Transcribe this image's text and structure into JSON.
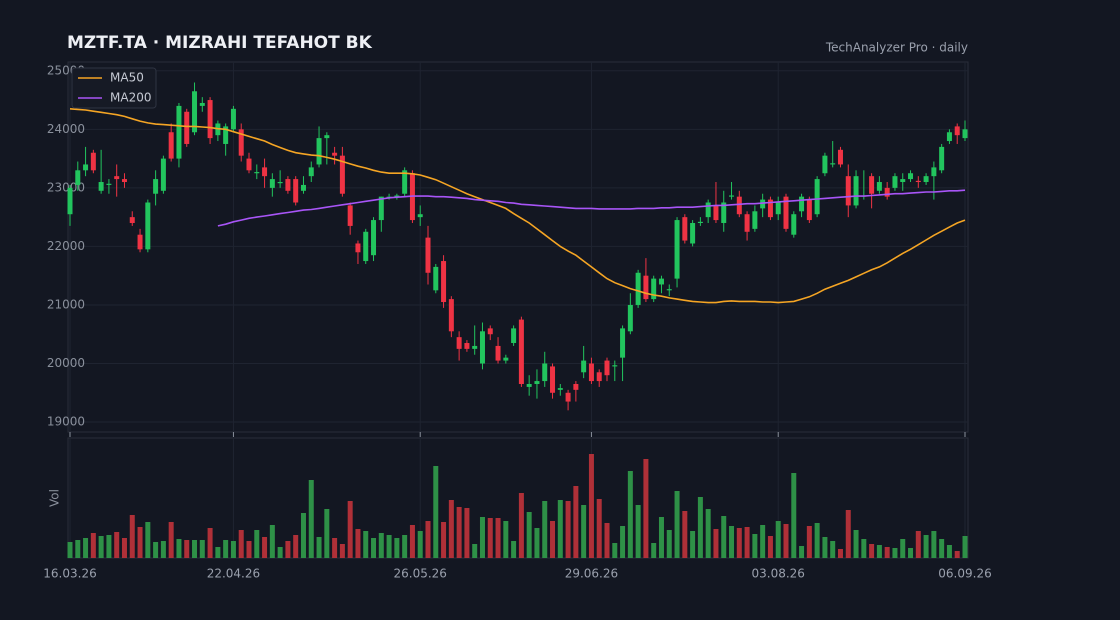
{
  "chart_data": {
    "type": "candlestick",
    "title": "MZTF.TA  ·  MIZRAHI TEFAHOT BK",
    "subtitle": "TechAnalyzer Pro · daily",
    "categories": [
      "16.03.26",
      null,
      null,
      null,
      null,
      null,
      null,
      null,
      null,
      null,
      null,
      null,
      null,
      null,
      null,
      null,
      null,
      null,
      null,
      null,
      null,
      "22.04.26",
      null,
      null,
      null,
      null,
      null,
      null,
      null,
      null,
      null,
      null,
      null,
      null,
      null,
      null,
      null,
      null,
      null,
      null,
      null,
      null,
      null,
      null,
      null,
      "26.05.26",
      null,
      null,
      null,
      null,
      null,
      null,
      null,
      null,
      null,
      null,
      null,
      null,
      null,
      null,
      null,
      null,
      null,
      null,
      null,
      null,
      null,
      "29.06.26",
      null,
      null,
      null,
      null,
      null,
      null,
      null,
      null,
      null,
      null,
      null,
      null,
      null,
      null,
      null,
      null,
      null,
      null,
      null,
      null,
      null,
      null,
      null,
      "03.08.26",
      null,
      null,
      null,
      null,
      null,
      null,
      null,
      null,
      null,
      null,
      null,
      null,
      null,
      null,
      null,
      null,
      null,
      null,
      null,
      null,
      null,
      null,
      null,
      "06.09.26"
    ],
    "open": [
      22550,
      23050,
      23300,
      23600,
      22950,
      23050,
      23200,
      23150,
      22500,
      22200,
      21950,
      22900,
      22950,
      23950,
      23500,
      24300,
      23950,
      24400,
      24500,
      23900,
      23750,
      24000,
      24000,
      23500,
      23250,
      23350,
      23000,
      23080,
      23150,
      23150,
      22950,
      23200,
      23400,
      23850,
      23600,
      23550,
      22700,
      22050,
      21750,
      21850,
      22450,
      22830,
      22850,
      22900,
      23250,
      22500,
      22150,
      21250,
      21750,
      21100,
      20450,
      20350,
      20250,
      20000,
      20600,
      20300,
      20050,
      20350,
      20750,
      19600,
      19650,
      19700,
      19950,
      19550,
      19500,
      19650,
      19850,
      20000,
      19850,
      20050,
      19950,
      20100,
      20550,
      21000,
      21500,
      21100,
      21350,
      21250,
      21450,
      22500,
      22050,
      22400,
      22500,
      22700,
      22400,
      22850,
      22850,
      22550,
      22300,
      22650,
      22800,
      22550,
      22850,
      22200,
      22600,
      22800,
      22550,
      23250,
      23400,
      23650,
      23200,
      22700,
      22850,
      23200,
      22950,
      23000,
      23000,
      23100,
      23150,
      23120,
      23100,
      23200,
      23300,
      23800,
      24050,
      23850
    ],
    "high": [
      23050,
      23450,
      23700,
      23650,
      23650,
      23150,
      23400,
      23250,
      22600,
      22300,
      22800,
      23300,
      23550,
      24100,
      24450,
      24350,
      24800,
      24550,
      24550,
      24150,
      24100,
      24400,
      24100,
      23600,
      23400,
      23500,
      23250,
      23300,
      23200,
      23200,
      23200,
      23450,
      24050,
      23950,
      23700,
      23700,
      22750,
      22100,
      22300,
      22500,
      22850,
      22900,
      22900,
      23350,
      23300,
      22700,
      22350,
      21700,
      21850,
      21150,
      20550,
      20400,
      20650,
      20700,
      20650,
      20450,
      20150,
      20650,
      20800,
      19800,
      19900,
      20200,
      20000,
      19650,
      19550,
      19700,
      20300,
      20100,
      19900,
      20100,
      20050,
      20650,
      21200,
      21600,
      21800,
      21500,
      21500,
      21350,
      22500,
      22550,
      22450,
      22500,
      22800,
      23100,
      22950,
      23100,
      22950,
      22600,
      22700,
      22900,
      22850,
      22850,
      22900,
      22600,
      22900,
      22850,
      23200,
      23600,
      23800,
      23700,
      23400,
      23300,
      23300,
      23250,
      23200,
      23100,
      23250,
      23250,
      23300,
      23200,
      23250,
      23450,
      23750,
      24000,
      24100,
      24150
    ],
    "low": [
      22350,
      22950,
      23200,
      23250,
      22900,
      22900,
      22850,
      23000,
      22350,
      21900,
      21900,
      22700,
      22900,
      23450,
      23350,
      23700,
      23900,
      24300,
      23750,
      23800,
      23550,
      23950,
      23450,
      23250,
      23150,
      23000,
      22850,
      23000,
      22900,
      22700,
      22900,
      23100,
      23350,
      23400,
      23400,
      22850,
      22200,
      21700,
      21700,
      21750,
      22250,
      22800,
      22800,
      22850,
      22400,
      22350,
      21350,
      21200,
      20950,
      20450,
      20050,
      20200,
      20150,
      19900,
      20400,
      20000,
      20000,
      20300,
      19600,
      19450,
      19400,
      19600,
      19400,
      19450,
      19200,
      19350,
      19750,
      19650,
      19600,
      19700,
      19700,
      19700,
      20500,
      20950,
      21050,
      21050,
      21200,
      21150,
      21300,
      22050,
      22000,
      22350,
      22400,
      22400,
      22250,
      22800,
      22500,
      22100,
      22250,
      22500,
      22450,
      22450,
      22250,
      22150,
      22500,
      22400,
      22500,
      23200,
      23350,
      23350,
      22500,
      22650,
      22800,
      22650,
      22900,
      22800,
      22950,
      22950,
      23100,
      23000,
      23050,
      22800,
      23250,
      23750,
      23750,
      23800
    ],
    "close": [
      23000,
      23300,
      23400,
      23300,
      23100,
      23070,
      23150,
      23100,
      22400,
      21950,
      22750,
      23150,
      23500,
      23500,
      24400,
      23750,
      24650,
      24450,
      23850,
      24100,
      24050,
      24350,
      23550,
      23300,
      23270,
      23200,
      23150,
      23100,
      22950,
      22750,
      23050,
      23350,
      23850,
      23900,
      23550,
      22900,
      22350,
      21900,
      22250,
      22450,
      22850,
      22850,
      22870,
      23300,
      22450,
      22550,
      21550,
      21650,
      21050,
      20550,
      20250,
      20250,
      20300,
      20550,
      20500,
      20050,
      20100,
      20600,
      19650,
      19650,
      19700,
      20000,
      19500,
      19580,
      19350,
      19550,
      20050,
      19700,
      19700,
      19800,
      19970,
      20600,
      21000,
      21550,
      21100,
      21450,
      21450,
      21270,
      22450,
      22100,
      22400,
      22420,
      22750,
      22450,
      22750,
      22870,
      22550,
      22250,
      22600,
      22800,
      22500,
      22750,
      22300,
      22550,
      22850,
      22450,
      23150,
      23550,
      23420,
      23400,
      22700,
      23200,
      22870,
      22900,
      23100,
      22850,
      23200,
      23150,
      23250,
      23100,
      23200,
      23350,
      23700,
      23950,
      23900,
      24000
    ],
    "volume": [
      16,
      18,
      20,
      25,
      22,
      23,
      26,
      20,
      43,
      31,
      36,
      16,
      17,
      36,
      19,
      18,
      18,
      18,
      30,
      11,
      18,
      17,
      28,
      17,
      28,
      21,
      33,
      11,
      17,
      23,
      45,
      78,
      21,
      49,
      20,
      14,
      57,
      29,
      27,
      20,
      25,
      23,
      20,
      23,
      33,
      27,
      37,
      92,
      36,
      58,
      51,
      50,
      14,
      41,
      40,
      40,
      37,
      17,
      65,
      46,
      30,
      57,
      37,
      58,
      57,
      72,
      53,
      104,
      59,
      35,
      15,
      32,
      87,
      53,
      99,
      15,
      41,
      28,
      67,
      47,
      27,
      61,
      49,
      29,
      42,
      32,
      30,
      31,
      24,
      33,
      22,
      37,
      34,
      85,
      12,
      32,
      35,
      21,
      17,
      9,
      48,
      28,
      19,
      14,
      13,
      11,
      10,
      19,
      10,
      27,
      23,
      27,
      19,
      13,
      7,
      22
    ],
    "up_color": "#22c55e",
    "down_color": "#ef3344",
    "volume_up_color": "#2e9147",
    "volume_down_color": "#b03038",
    "series": [
      {
        "name": "MA50",
        "color": "#f5a524",
        "values": [
          24350,
          24340,
          24330,
          24310,
          24290,
          24270,
          24250,
          24220,
          24180,
          24140,
          24110,
          24090,
          24080,
          24070,
          24060,
          24050,
          24050,
          24040,
          24030,
          24010,
          24000,
          23960,
          23920,
          23880,
          23840,
          23800,
          23740,
          23690,
          23640,
          23600,
          23580,
          23560,
          23550,
          23520,
          23490,
          23450,
          23410,
          23370,
          23340,
          23300,
          23270,
          23250,
          23250,
          23250,
          23240,
          23220,
          23180,
          23140,
          23080,
          23020,
          22960,
          22900,
          22850,
          22800,
          22750,
          22700,
          22650,
          22560,
          22480,
          22400,
          22300,
          22200,
          22100,
          22000,
          21920,
          21850,
          21750,
          21650,
          21550,
          21450,
          21380,
          21330,
          21280,
          21240,
          21200,
          21170,
          21150,
          21120,
          21100,
          21080,
          21060,
          21050,
          21040,
          21040,
          21060,
          21070,
          21060,
          21060,
          21060,
          21050,
          21050,
          21040,
          21050,
          21060,
          21100,
          21140,
          21200,
          21270,
          21320,
          21370,
          21420,
          21480,
          21540,
          21600,
          21650,
          21720,
          21800,
          21880,
          21950,
          22030,
          22110,
          22190,
          22260,
          22330,
          22400,
          22450
        ]
      },
      {
        "name": "MA200",
        "color": "#a855f7",
        "values": [
          null,
          null,
          null,
          null,
          null,
          null,
          null,
          null,
          null,
          null,
          null,
          null,
          null,
          null,
          null,
          null,
          null,
          null,
          null,
          22350,
          22380,
          22420,
          22450,
          22480,
          22500,
          22520,
          22540,
          22560,
          22580,
          22600,
          22620,
          22630,
          22650,
          22670,
          22690,
          22710,
          22730,
          22750,
          22770,
          22790,
          22810,
          22830,
          22840,
          22850,
          22860,
          22860,
          22860,
          22850,
          22850,
          22840,
          22830,
          22820,
          22800,
          22790,
          22780,
          22770,
          22750,
          22740,
          22720,
          22710,
          22700,
          22690,
          22680,
          22670,
          22660,
          22650,
          22650,
          22650,
          22640,
          22640,
          22640,
          22640,
          22640,
          22650,
          22650,
          22650,
          22660,
          22660,
          22670,
          22670,
          22670,
          22680,
          22690,
          22700,
          22700,
          22710,
          22720,
          22730,
          22730,
          22740,
          22750,
          22760,
          22770,
          22780,
          22790,
          22800,
          22810,
          22820,
          22830,
          22840,
          22850,
          22860,
          22860,
          22870,
          22880,
          22890,
          22900,
          22900,
          22910,
          22920,
          22930,
          22930,
          22940,
          22950,
          22950,
          22960
        ]
      }
    ],
    "ylim": [
      18830,
      25150
    ],
    "yticks": [
      19000,
      20000,
      21000,
      22000,
      23000,
      24000,
      25000
    ],
    "vlim": [
      0,
      120
    ],
    "volume_label": "Vol",
    "grid": true,
    "legend": "upper left"
  }
}
